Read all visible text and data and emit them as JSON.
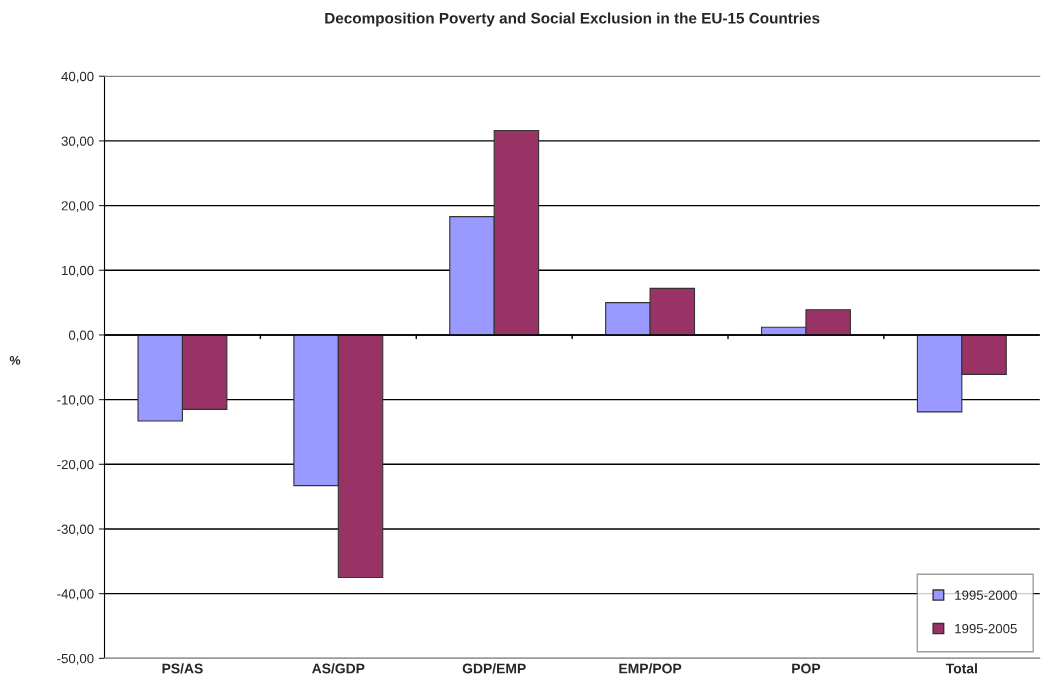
{
  "chart_data": {
    "type": "bar",
    "title": "Decomposition Poverty and Social Exclusion in the EU-15 Countries",
    "ylabel": "%",
    "categories": [
      "PS/AS",
      "AS/GDP",
      "GDP/EMP",
      "EMP/POP",
      "POP",
      "Total"
    ],
    "series": [
      {
        "name": "1995-2000",
        "color": "#9999ff",
        "values": [
          -13.3,
          -23.3,
          18.3,
          5.0,
          1.2,
          -11.9
        ]
      },
      {
        "name": "1995-2005",
        "color": "#993366",
        "values": [
          -11.5,
          -37.5,
          31.6,
          7.2,
          3.9,
          -6.1
        ]
      }
    ],
    "ylim": [
      -50,
      40
    ],
    "yticks": [
      {
        "value": -50,
        "label": "-50,00"
      },
      {
        "value": -40,
        "label": "-40,00"
      },
      {
        "value": -30,
        "label": "-30,00"
      },
      {
        "value": -20,
        "label": "-20,00"
      },
      {
        "value": -10,
        "label": "-10,00"
      },
      {
        "value": 0,
        "label": "0,00"
      },
      {
        "value": 10,
        "label": "10,00"
      },
      {
        "value": 20,
        "label": "20,00"
      },
      {
        "value": 30,
        "label": "30,00"
      },
      {
        "value": 40,
        "label": "40,00"
      }
    ],
    "grid": "y",
    "legend": "bottom right"
  }
}
